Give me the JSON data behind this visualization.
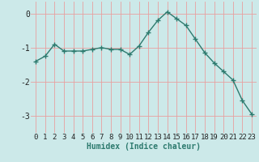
{
  "x": [
    0,
    1,
    2,
    3,
    4,
    5,
    6,
    7,
    8,
    9,
    10,
    11,
    12,
    13,
    14,
    15,
    16,
    17,
    18,
    19,
    20,
    21,
    22,
    23
  ],
  "y": [
    -1.4,
    -1.25,
    -0.9,
    -1.1,
    -1.1,
    -1.1,
    -1.05,
    -1.0,
    -1.05,
    -1.05,
    -1.2,
    -0.95,
    -0.55,
    -0.2,
    0.05,
    -0.15,
    -0.35,
    -0.75,
    -1.15,
    -1.45,
    -1.7,
    -1.95,
    -2.55,
    -2.95
  ],
  "line_color": "#2d7a6e",
  "marker": "+",
  "markersize": 4,
  "linewidth": 1.0,
  "xlabel": "Humidex (Indice chaleur)",
  "xlabel_fontsize": 7,
  "xlabel_fontweight": "bold",
  "xtick_labels": [
    "0",
    "1",
    "2",
    "3",
    "4",
    "5",
    "6",
    "7",
    "8",
    "9",
    "10",
    "11",
    "12",
    "13",
    "14",
    "15",
    "16",
    "17",
    "18",
    "19",
    "20",
    "21",
    "22",
    "23"
  ],
  "yticks": [
    0,
    -1,
    -2,
    -3
  ],
  "ytick_labels": [
    "0",
    "-1",
    "-2",
    "-3"
  ],
  "ylim": [
    -3.5,
    0.35
  ],
  "xlim": [
    -0.5,
    23.5
  ],
  "bg_color": "#cce9e9",
  "grid_color": "#e8a0a0",
  "tick_fontsize": 6.5,
  "ytick_fontsize": 7
}
